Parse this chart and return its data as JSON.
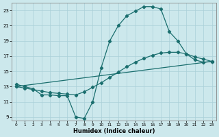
{
  "xlabel": "Humidex (Indice chaleur)",
  "background_color": "#cce8ec",
  "grid_color": "#aad0d8",
  "line_color": "#1a6e6e",
  "xlim": [
    -0.5,
    23.5
  ],
  "ylim": [
    8.5,
    24.0
  ],
  "xticks": [
    0,
    1,
    2,
    3,
    4,
    5,
    6,
    7,
    8,
    9,
    10,
    11,
    12,
    13,
    14,
    15,
    16,
    17,
    18,
    19,
    20,
    21,
    22,
    23
  ],
  "yticks": [
    9,
    11,
    13,
    15,
    17,
    19,
    21,
    23
  ],
  "line1_x": [
    0,
    1,
    2,
    3,
    4,
    5,
    6,
    7,
    8,
    9,
    10,
    11,
    12,
    13,
    14,
    15,
    16,
    17,
    18,
    19,
    20,
    21,
    22,
    23
  ],
  "line1_y": [
    13.3,
    13.0,
    12.7,
    11.9,
    11.9,
    11.8,
    11.8,
    9.0,
    8.8,
    11.0,
    15.5,
    19.0,
    21.0,
    22.3,
    22.9,
    23.5,
    23.5,
    23.2,
    20.2,
    19.0,
    17.3,
    16.5,
    16.2,
    16.3
  ],
  "line2_x": [
    0,
    1,
    2,
    3,
    4,
    5,
    6,
    7,
    8,
    9,
    10,
    11,
    12,
    13,
    14,
    15,
    16,
    17,
    18,
    19,
    20,
    21,
    22,
    23
  ],
  "line2_y": [
    13.0,
    12.8,
    12.6,
    12.4,
    12.2,
    12.1,
    12.0,
    11.9,
    12.3,
    12.9,
    13.5,
    14.2,
    14.9,
    15.6,
    16.2,
    16.7,
    17.1,
    17.4,
    17.5,
    17.5,
    17.3,
    16.9,
    16.6,
    16.3
  ],
  "line3_x": [
    0,
    23
  ],
  "line3_y": [
    13.0,
    16.3
  ]
}
